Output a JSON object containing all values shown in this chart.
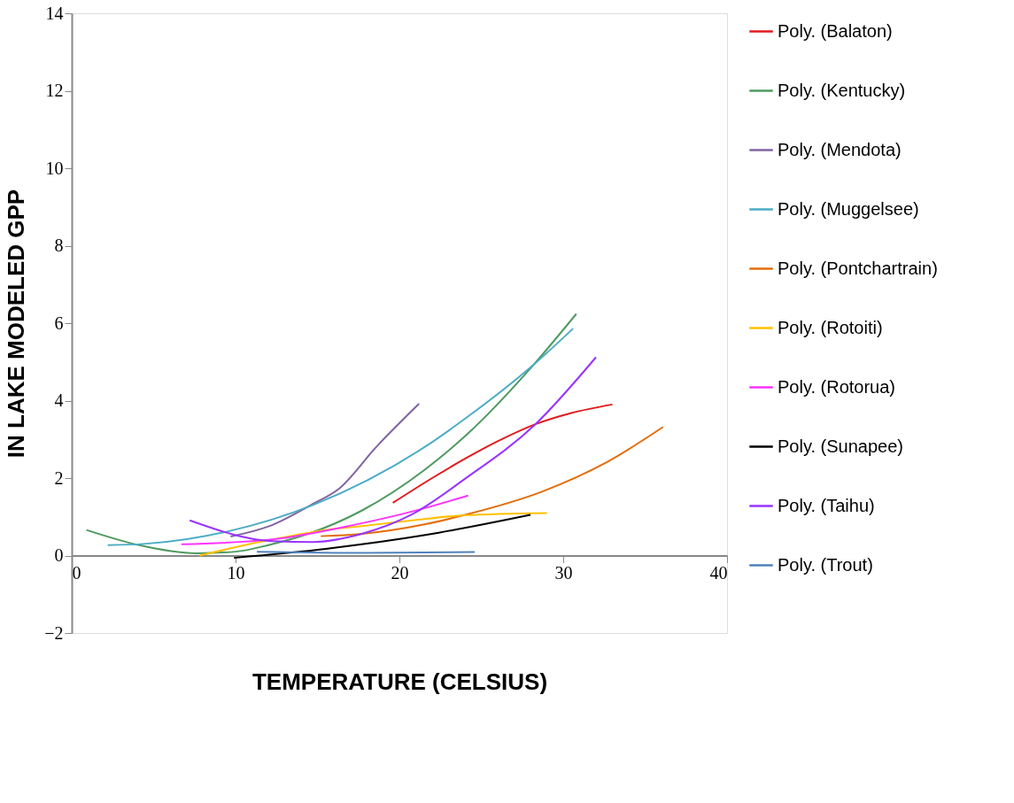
{
  "chart_data": {
    "type": "line",
    "xlabel": "TEMPERATURE (CELSIUS)",
    "ylabel": "IN LAKE MODELED GPP",
    "xlim": [
      0,
      40
    ],
    "xticks": [
      0,
      10,
      20,
      30,
      40
    ],
    "ylim": [
      -2,
      14
    ],
    "yticks": [
      -2,
      0,
      2,
      4,
      6,
      8,
      10,
      12,
      14
    ],
    "grid": false,
    "legend": "right",
    "marker": "none",
    "line_style": "solid",
    "series": [
      {
        "name": "Poly. (Balaton)",
        "color": "#e41a1c",
        "x": [
          19.6,
          22,
          24,
          26,
          28.3,
          30.5,
          33
        ],
        "values": [
          1.36,
          2.0,
          2.5,
          2.95,
          3.39,
          3.68,
          3.9
        ]
      },
      {
        "name": "Poly. (Kentucky)",
        "color": "#4e9a5f",
        "x": [
          0.9,
          4,
          7.6,
          10,
          12,
          14.5,
          17.7,
          21.5,
          24,
          28.2,
          30.8
        ],
        "values": [
          0.66,
          0.28,
          0.06,
          0.1,
          0.27,
          0.57,
          1.16,
          2.2,
          3.08,
          4.93,
          6.24
        ]
      },
      {
        "name": "Poly. (Mendota)",
        "color": "#8064a2",
        "x": [
          9.7,
          12,
          14.7,
          16.3,
          18.6,
          21.2
        ],
        "values": [
          0.49,
          0.75,
          1.33,
          1.72,
          2.81,
          3.92
        ]
      },
      {
        "name": "Poly. (Muggelsee)",
        "color": "#4bacc6",
        "x": [
          2.2,
          4.4,
          9.5,
          14.7,
          21.5,
          24,
          28.2,
          30.6
        ],
        "values": [
          0.27,
          0.3,
          0.62,
          1.3,
          2.79,
          3.53,
          4.93,
          5.86
        ]
      },
      {
        "name": "Poly. (Pontchartrain)",
        "color": "#e46c0a",
        "x": [
          15.2,
          17.7,
          21.6,
          24,
          28.7,
          32.7,
          36.1
        ],
        "values": [
          0.5,
          0.56,
          0.81,
          1.05,
          1.65,
          2.42,
          3.32
        ]
      },
      {
        "name": "Poly. (Rotoiti)",
        "color": "#ffc000",
        "x": [
          7.8,
          11.7,
          15.5,
          17.7,
          20.8,
          24,
          29
        ],
        "values": [
          0,
          0.37,
          0.66,
          0.76,
          0.91,
          1.04,
          1.1
        ]
      },
      {
        "name": "Poly. (Rotorua)",
        "color": "#ff33ff",
        "x": [
          6.7,
          12.3,
          17.1,
          20.8,
          24.2
        ],
        "values": [
          0.29,
          0.42,
          0.78,
          1.14,
          1.55
        ]
      },
      {
        "name": "Poly. (Sunapee)",
        "color": "#000000",
        "x": [
          9.9,
          15.5,
          17.7,
          22.4,
          28
        ],
        "values": [
          -0.06,
          0.17,
          0.29,
          0.59,
          1.05
        ]
      },
      {
        "name": "Poly. (Taihu)",
        "color": "#9933ff",
        "x": [
          7.2,
          12.3,
          14.7,
          17.7,
          20.8,
          24,
          28.3,
          32
        ],
        "values": [
          0.91,
          0.37,
          0.35,
          0.56,
          1.07,
          1.98,
          3.39,
          5.12
        ]
      },
      {
        "name": "Poly. (Trout)",
        "color": "#4f81bd",
        "x": [
          11.3,
          18,
          24.6
        ],
        "values": [
          0.1,
          0.07,
          0.09
        ]
      }
    ]
  }
}
